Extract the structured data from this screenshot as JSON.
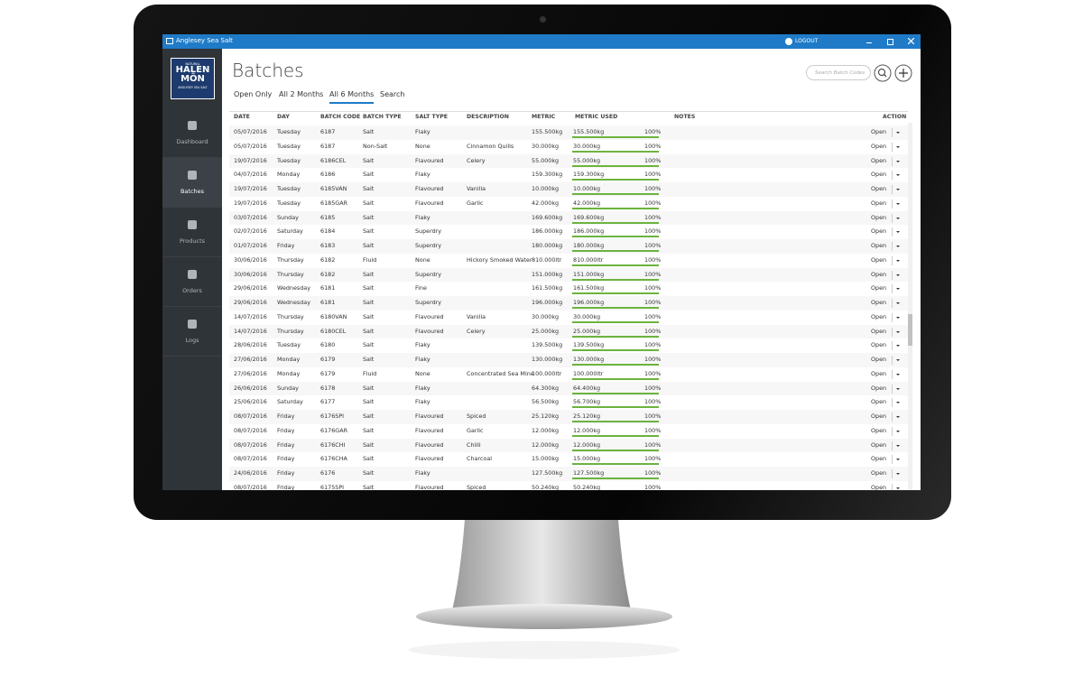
{
  "app": {
    "title": "Anglesey Sea Salt",
    "logout": "LOGOUT",
    "logo": [
      "NATURAL",
      "HALEN",
      "MÔN",
      "ANGLESEY SEA SALT"
    ]
  },
  "sidebar": {
    "items": [
      "Dashboard",
      "Batches",
      "Products",
      "Orders",
      "Logs"
    ],
    "active": 1
  },
  "page": {
    "title": "Batches",
    "tabs": [
      "Open Only",
      "All 2 Months",
      "All 6 Months",
      "Search"
    ],
    "active_tab": 2,
    "search_placeholder": "Search Batch Codes"
  },
  "table": {
    "columns": [
      "DATE",
      "DAY",
      "BATCH CODE",
      "BATCH TYPE",
      "SALT TYPE",
      "DESCRIPTION",
      "METRIC",
      "METRIC USED",
      "NOTES",
      "ACTION"
    ],
    "rows": [
      [
        "05/07/2016",
        "Tuesday",
        "6187",
        "Salt",
        "Flaky",
        null,
        "155.500kg",
        "155.500kg",
        "100%",
        "Open"
      ],
      [
        "05/07/2016",
        "Tuesday",
        "6187",
        "Non-Salt",
        "None",
        "Cinnamon Quills",
        "30.000kg",
        "30.000kg",
        "100%",
        "Open"
      ],
      [
        "19/07/2016",
        "Tuesday",
        "6186CEL",
        "Salt",
        "Flavoured",
        "Celery",
        "55.000kg",
        "55.000kg",
        "100%",
        "Open"
      ],
      [
        "04/07/2016",
        "Monday",
        "6186",
        "Salt",
        "Flaky",
        null,
        "159.300kg",
        "159.300kg",
        "100%",
        "Open"
      ],
      [
        "19/07/2016",
        "Tuesday",
        "6185VAN",
        "Salt",
        "Flavoured",
        "Vanilla",
        "10.000kg",
        "10.000kg",
        "100%",
        "Open"
      ],
      [
        "19/07/2016",
        "Tuesday",
        "6185GAR",
        "Salt",
        "Flavoured",
        "Garlic",
        "42.000kg",
        "42.000kg",
        "100%",
        "Open"
      ],
      [
        "03/07/2016",
        "Sunday",
        "6185",
        "Salt",
        "Flaky",
        null,
        "169.600kg",
        "169.600kg",
        "100%",
        "Open"
      ],
      [
        "02/07/2016",
        "Saturday",
        "6184",
        "Salt",
        "Superdry",
        null,
        "186.000kg",
        "186.000kg",
        "100%",
        "Open"
      ],
      [
        "01/07/2016",
        "Friday",
        "6183",
        "Salt",
        "Superdry",
        null,
        "180.000kg",
        "180.000kg",
        "100%",
        "Open"
      ],
      [
        "30/06/2016",
        "Thursday",
        "6182",
        "Fluid",
        "None",
        "Hickory Smoked Water",
        "810.000ltr",
        "810.000ltr",
        "100%",
        "Open"
      ],
      [
        "30/06/2016",
        "Thursday",
        "6182",
        "Salt",
        "Superdry",
        null,
        "151.000kg",
        "151.000kg",
        "100%",
        "Open"
      ],
      [
        "29/06/2016",
        "Wednesday",
        "6181",
        "Salt",
        "Fine",
        null,
        "161.500kg",
        "161.500kg",
        "100%",
        "Open"
      ],
      [
        "29/06/2016",
        "Wednesday",
        "6181",
        "Salt",
        "Superdry",
        null,
        "196.000kg",
        "196.000kg",
        "100%",
        "Open"
      ],
      [
        "14/07/2016",
        "Thursday",
        "6180VAN",
        "Salt",
        "Flavoured",
        "Vanilla",
        "30.000kg",
        "30.000kg",
        "100%",
        "Open"
      ],
      [
        "14/07/2016",
        "Thursday",
        "6180CEL",
        "Salt",
        "Flavoured",
        "Celery",
        "25.000kg",
        "25.000kg",
        "100%",
        "Open"
      ],
      [
        "28/06/2016",
        "Tuesday",
        "6180",
        "Salt",
        "Flaky",
        null,
        "139.500kg",
        "139.500kg",
        "100%",
        "Open"
      ],
      [
        "27/06/2016",
        "Monday",
        "6179",
        "Salt",
        "Flaky",
        null,
        "130.000kg",
        "130.000kg",
        "100%",
        "Open"
      ],
      [
        "27/06/2016",
        "Monday",
        "6179",
        "Fluid",
        "None",
        "Concentrated Sea Mine",
        "100.000ltr",
        "100.000ltr",
        "100%",
        "Open"
      ],
      [
        "26/06/2016",
        "Sunday",
        "6178",
        "Salt",
        "Flaky",
        null,
        "64.300kg",
        "64.400kg",
        "100%",
        "Open"
      ],
      [
        "25/06/2016",
        "Saturday",
        "6177",
        "Salt",
        "Flaky",
        null,
        "56.500kg",
        "56.700kg",
        "100%",
        "Open"
      ],
      [
        "08/07/2016",
        "Friday",
        "6176SPI",
        "Salt",
        "Flavoured",
        "Spiced",
        "25.120kg",
        "25.120kg",
        "100%",
        "Open"
      ],
      [
        "08/07/2016",
        "Friday",
        "6176GAR",
        "Salt",
        "Flavoured",
        "Garlic",
        "12.000kg",
        "12.000kg",
        "100%",
        "Open"
      ],
      [
        "08/07/2016",
        "Friday",
        "6176CHI",
        "Salt",
        "Flavoured",
        "Chilli",
        "12.000kg",
        "12.000kg",
        "100%",
        "Open"
      ],
      [
        "08/07/2016",
        "Friday",
        "6176CHA",
        "Salt",
        "Flavoured",
        "Charcoal",
        "15.000kg",
        "15.000kg",
        "100%",
        "Open"
      ],
      [
        "24/06/2016",
        "Friday",
        "6176",
        "Salt",
        "Flaky",
        null,
        "127.500kg",
        "127.500kg",
        "100%",
        "Open"
      ],
      [
        "08/07/2016",
        "Friday",
        "6175SPI",
        "Salt",
        "Flavoured",
        "Spiced",
        "50.240kg",
        "50.240kg",
        "100%",
        "Open"
      ]
    ]
  }
}
